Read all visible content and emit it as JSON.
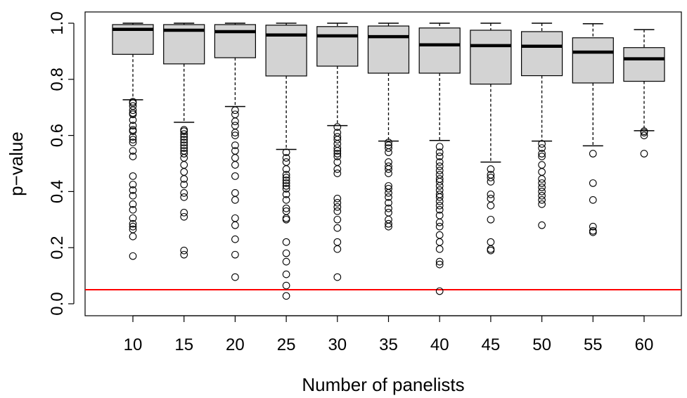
{
  "chart_data": {
    "type": "box",
    "xlabel": "Number of panelists",
    "ylabel": "p−value",
    "ylim": [
      -0.03,
      1.04
    ],
    "yticks": [
      "0.0",
      "0.2",
      "0.4",
      "0.6",
      "0.8",
      "1.0"
    ],
    "ytick_values": [
      0,
      0.2,
      0.4,
      0.6,
      0.8,
      1.0
    ],
    "reference_line": {
      "y": 0.05,
      "color": "#ff0000"
    },
    "box_fill": "#d3d3d3",
    "categories": [
      "10",
      "15",
      "20",
      "25",
      "30",
      "35",
      "40",
      "45",
      "50",
      "55",
      "60"
    ],
    "boxes": [
      {
        "min": 0.727,
        "q1": 0.889,
        "median": 0.978,
        "q3": 0.995,
        "max": 1.0,
        "outliers": [
          0.72,
          0.715,
          0.705,
          0.69,
          0.68,
          0.675,
          0.655,
          0.635,
          0.62,
          0.615,
          0.595,
          0.585,
          0.575,
          0.545,
          0.525,
          0.455,
          0.425,
          0.405,
          0.385,
          0.355,
          0.335,
          0.305,
          0.285,
          0.275,
          0.265,
          0.24,
          0.17
        ]
      },
      {
        "min": 0.647,
        "q1": 0.855,
        "median": 0.975,
        "q3": 0.995,
        "max": 1.0,
        "outliers": [
          0.62,
          0.615,
          0.605,
          0.595,
          0.585,
          0.575,
          0.565,
          0.555,
          0.545,
          0.535,
          0.52,
          0.495,
          0.47,
          0.445,
          0.425,
          0.395,
          0.38,
          0.325,
          0.31,
          0.19,
          0.175
        ]
      },
      {
        "min": 0.703,
        "q1": 0.877,
        "median": 0.97,
        "q3": 0.995,
        "max": 1.0,
        "outliers": [
          0.69,
          0.675,
          0.65,
          0.635,
          0.61,
          0.6,
          0.565,
          0.545,
          0.52,
          0.495,
          0.455,
          0.395,
          0.37,
          0.305,
          0.28,
          0.23,
          0.175,
          0.095
        ]
      },
      {
        "min": 0.55,
        "q1": 0.812,
        "median": 0.958,
        "q3": 0.993,
        "max": 1.0,
        "outliers": [
          0.54,
          0.52,
          0.505,
          0.48,
          0.46,
          0.45,
          0.44,
          0.43,
          0.42,
          0.41,
          0.39,
          0.37,
          0.34,
          0.33,
          0.305,
          0.3,
          0.22,
          0.18,
          0.15,
          0.105,
          0.065,
          0.028
        ]
      },
      {
        "min": 0.635,
        "q1": 0.847,
        "median": 0.955,
        "q3": 0.988,
        "max": 1.0,
        "outliers": [
          0.63,
          0.61,
          0.595,
          0.585,
          0.57,
          0.555,
          0.545,
          0.535,
          0.525,
          0.505,
          0.48,
          0.465,
          0.375,
          0.36,
          0.345,
          0.33,
          0.3,
          0.27,
          0.22,
          0.195,
          0.095
        ]
      },
      {
        "min": 0.58,
        "q1": 0.822,
        "median": 0.952,
        "q3": 0.99,
        "max": 1.0,
        "outliers": [
          0.575,
          0.565,
          0.555,
          0.54,
          0.505,
          0.49,
          0.48,
          0.465,
          0.42,
          0.41,
          0.395,
          0.38,
          0.36,
          0.34,
          0.325,
          0.3,
          0.285,
          0.275
        ]
      },
      {
        "min": 0.582,
        "q1": 0.822,
        "median": 0.923,
        "q3": 0.983,
        "max": 1.0,
        "outliers": [
          0.56,
          0.54,
          0.525,
          0.505,
          0.49,
          0.475,
          0.46,
          0.445,
          0.435,
          0.42,
          0.405,
          0.39,
          0.38,
          0.365,
          0.35,
          0.335,
          0.315,
          0.29,
          0.275,
          0.245,
          0.22,
          0.195,
          0.15,
          0.14,
          0.045
        ]
      },
      {
        "min": 0.505,
        "q1": 0.783,
        "median": 0.92,
        "q3": 0.975,
        "max": 1.0,
        "outliers": [
          0.48,
          0.46,
          0.45,
          0.435,
          0.39,
          0.375,
          0.35,
          0.3,
          0.22,
          0.195,
          0.19
        ]
      },
      {
        "min": 0.58,
        "q1": 0.813,
        "median": 0.918,
        "q3": 0.97,
        "max": 1.0,
        "outliers": [
          0.57,
          0.555,
          0.535,
          0.525,
          0.495,
          0.47,
          0.445,
          0.43,
          0.415,
          0.4,
          0.385,
          0.37,
          0.355,
          0.28
        ]
      },
      {
        "min": 0.563,
        "q1": 0.787,
        "median": 0.897,
        "q3": 0.948,
        "max": 0.998,
        "outliers": [
          0.535,
          0.43,
          0.37,
          0.275,
          0.26,
          0.255
        ]
      },
      {
        "min": 0.617,
        "q1": 0.793,
        "median": 0.873,
        "q3": 0.913,
        "max": 0.977,
        "outliers": [
          0.615,
          0.61,
          0.6,
          0.535
        ]
      }
    ]
  }
}
